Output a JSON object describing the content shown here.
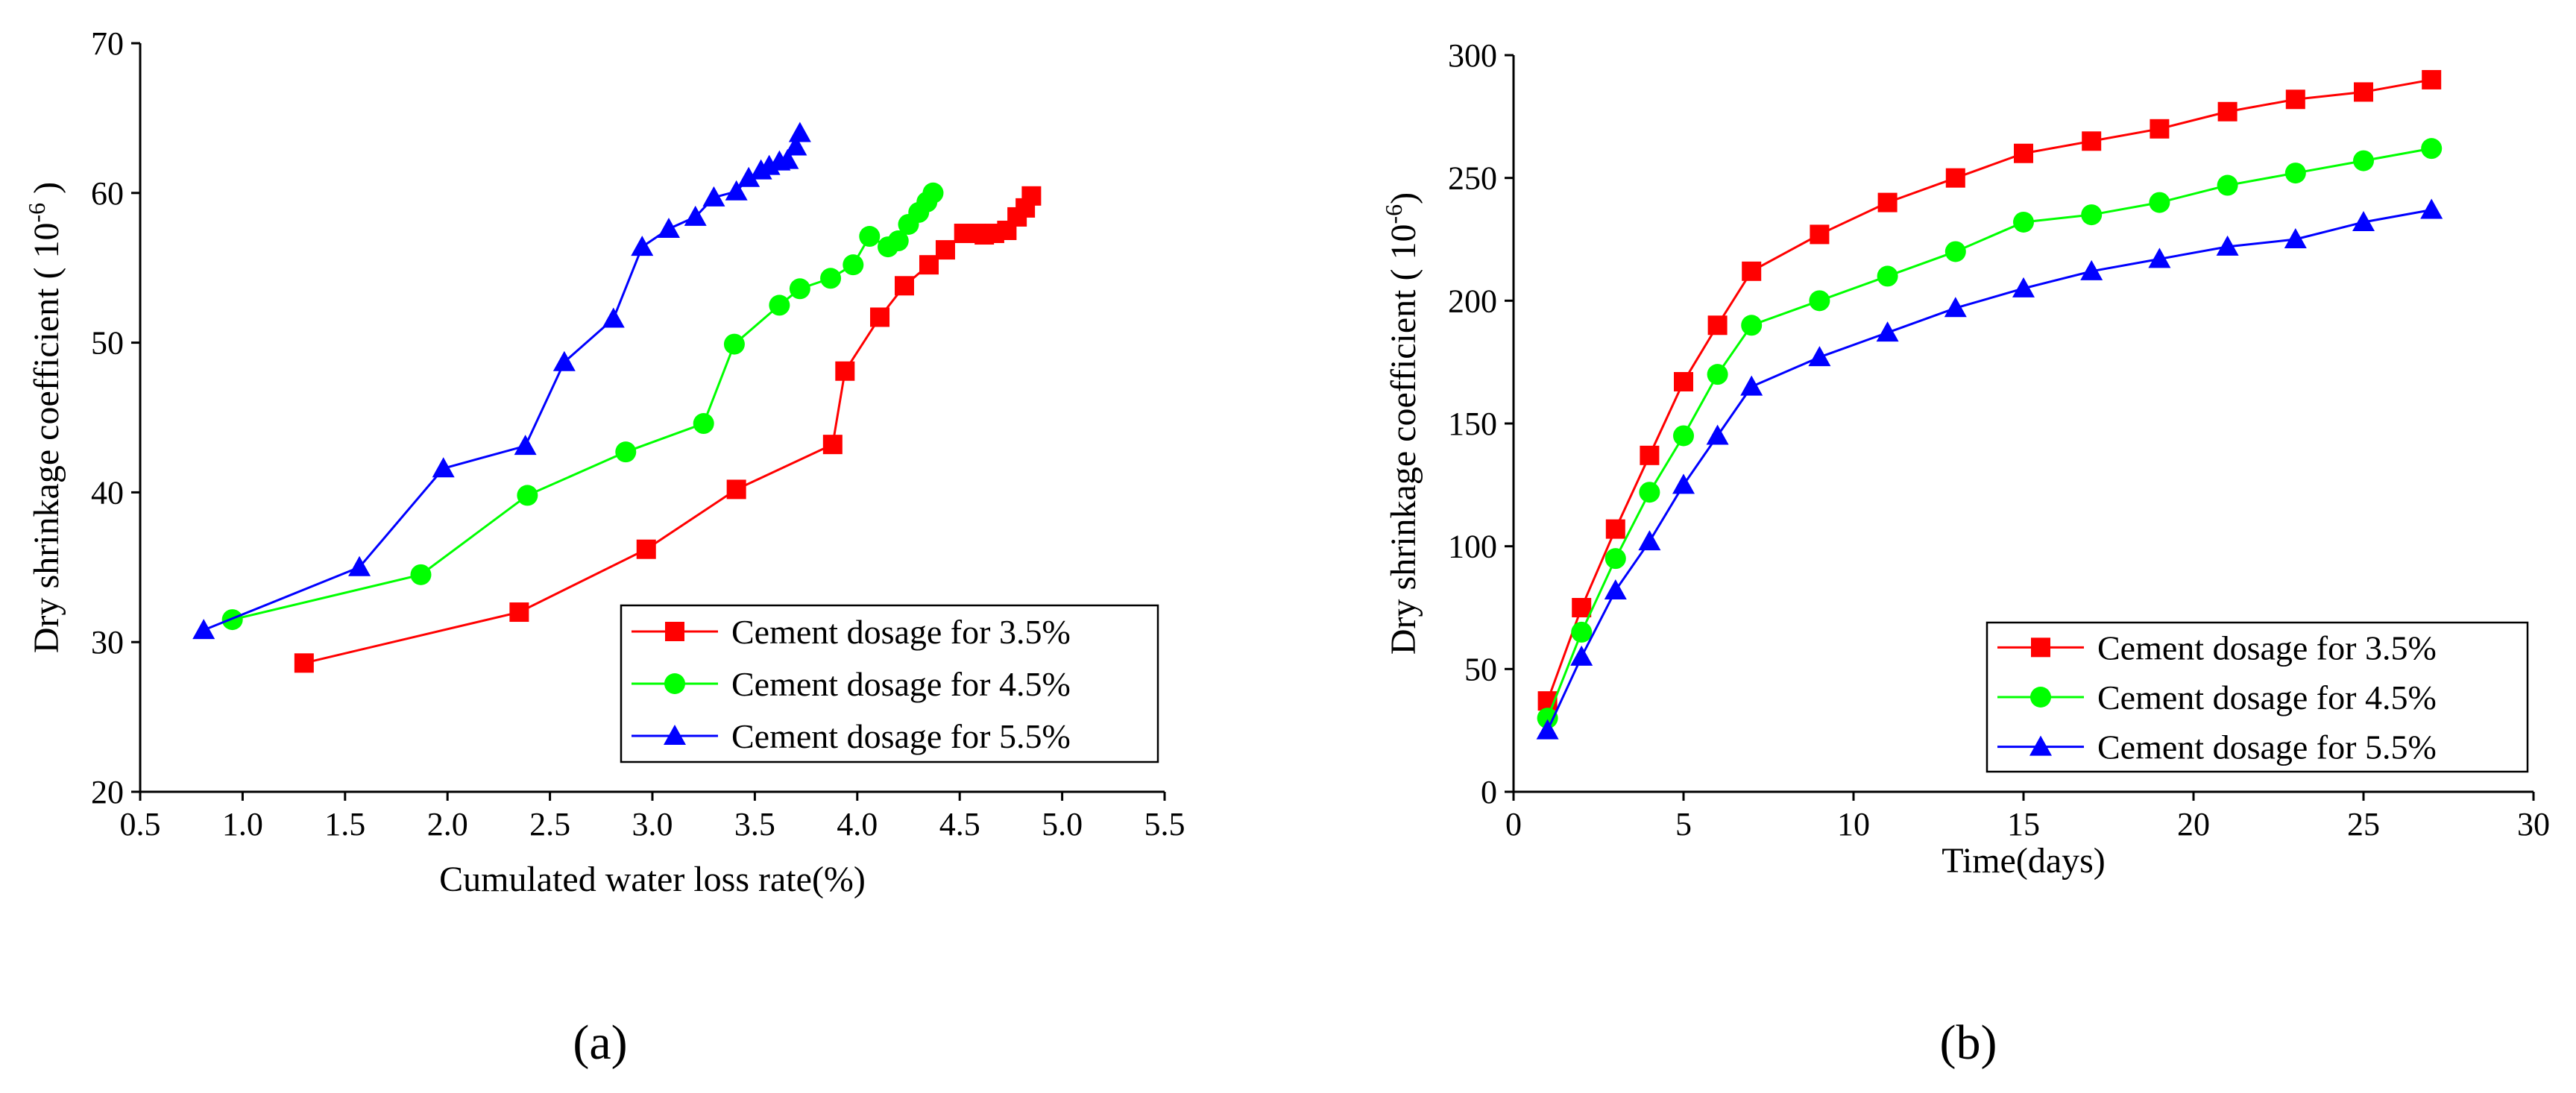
{
  "chart_data": [
    {
      "type": "line",
      "panel_label": "(a)",
      "xlabel": "Cumulated water loss rate(%)",
      "ylabel": "Dry shrinkage coefficient ( 10",
      "ylabel_exp": "-6",
      "ylabel_close": " )",
      "xlim": [
        0.5,
        5.5
      ],
      "ylim": [
        20,
        70
      ],
      "xticks": [
        0.5,
        1.0,
        1.5,
        2.0,
        2.5,
        3.0,
        3.5,
        4.0,
        4.5,
        5.0,
        5.5
      ],
      "xtick_labels": [
        "0.5",
        "1.0",
        "1.5",
        "2.0",
        "2.5",
        "3.0",
        "3.5",
        "4.0",
        "4.5",
        "5.0",
        "5.5"
      ],
      "yticks": [
        20,
        30,
        40,
        50,
        60,
        70
      ],
      "ytick_labels": [
        "20",
        "30",
        "40",
        "50",
        "60",
        "70"
      ],
      "legend_position": "bottom-right",
      "series": [
        {
          "name": "Cement dosage for 3.5%",
          "color": "#ff0000",
          "marker": "square",
          "x": [
            1.3,
            2.35,
            2.97,
            3.41,
            3.88,
            3.94,
            4.11,
            4.23,
            4.35,
            4.43,
            4.52,
            4.58,
            4.62,
            4.67,
            4.73,
            4.78,
            4.82,
            4.85
          ],
          "y": [
            28.6,
            32.0,
            36.2,
            40.2,
            43.2,
            48.1,
            51.7,
            53.8,
            55.2,
            56.2,
            57.3,
            57.3,
            57.2,
            57.3,
            57.5,
            58.4,
            59.0,
            59.8
          ]
        },
        {
          "name": "Cement dosage for 4.5%",
          "color": "#00ff00",
          "marker": "circle",
          "x": [
            0.95,
            1.87,
            2.39,
            2.87,
            3.25,
            3.4,
            3.62,
            3.72,
            3.87,
            3.98,
            4.06,
            4.15,
            4.2,
            4.25,
            4.3,
            4.34,
            4.37
          ],
          "y": [
            31.5,
            34.5,
            39.8,
            42.7,
            44.6,
            49.9,
            52.5,
            53.6,
            54.3,
            55.2,
            57.1,
            56.4,
            56.8,
            57.9,
            58.7,
            59.4,
            60.0
          ]
        },
        {
          "name": "Cement dosage for 5.5%",
          "color": "#0000ff",
          "marker": "triangle",
          "x": [
            0.81,
            1.57,
            1.98,
            2.38,
            2.57,
            2.81,
            2.95,
            3.08,
            3.21,
            3.3,
            3.41,
            3.47,
            3.53,
            3.57,
            3.62,
            3.66,
            3.7,
            3.72
          ],
          "y": [
            30.8,
            35.0,
            41.6,
            43.1,
            48.7,
            51.6,
            56.4,
            57.6,
            58.4,
            59.7,
            60.1,
            61.0,
            61.5,
            61.8,
            62.1,
            62.2,
            63.1,
            64.0
          ]
        }
      ]
    },
    {
      "type": "line",
      "panel_label": "(b)",
      "xlabel": "Time(days)",
      "ylabel": "Dry shrinkage coefficient ( 10",
      "ylabel_exp": "-6",
      "ylabel_close": ")",
      "xlim": [
        0,
        30
      ],
      "ylim": [
        0,
        300
      ],
      "xticks": [
        0,
        5,
        10,
        15,
        20,
        25,
        30
      ],
      "xtick_labels": [
        "0",
        "5",
        "10",
        "15",
        "20",
        "25",
        "30"
      ],
      "yticks": [
        0,
        50,
        100,
        150,
        200,
        250,
        300
      ],
      "ytick_labels": [
        "0",
        "50",
        "100",
        "150",
        "200",
        "250",
        "300"
      ],
      "legend_position": "bottom-right",
      "series": [
        {
          "name": "Cement dosage for 3.5%",
          "color": "#ff0000",
          "marker": "square",
          "x": [
            1,
            2,
            3,
            4,
            5,
            6,
            7,
            9,
            11,
            13,
            15,
            17,
            19,
            21,
            23,
            25,
            27
          ],
          "y": [
            37,
            75,
            107,
            137,
            167,
            190,
            212,
            227,
            240,
            250,
            260,
            265,
            270,
            277,
            282,
            285,
            290
          ]
        },
        {
          "name": "Cement dosage for 4.5%",
          "color": "#00ff00",
          "marker": "circle",
          "x": [
            1,
            2,
            3,
            4,
            5,
            6,
            7,
            9,
            11,
            13,
            15,
            17,
            19,
            21,
            23,
            25,
            27
          ],
          "y": [
            30,
            65,
            95,
            122,
            145,
            170,
            190,
            200,
            210,
            220,
            232,
            235,
            240,
            247,
            252,
            257,
            262
          ]
        },
        {
          "name": "Cement dosage for 5.5%",
          "color": "#0000ff",
          "marker": "triangle",
          "x": [
            1,
            2,
            3,
            4,
            5,
            6,
            7,
            9,
            11,
            13,
            15,
            17,
            19,
            21,
            23,
            25,
            27
          ],
          "y": [
            25,
            55,
            82,
            102,
            125,
            145,
            165,
            177,
            187,
            197,
            205,
            212,
            217,
            222,
            225,
            232,
            237
          ]
        }
      ]
    }
  ]
}
